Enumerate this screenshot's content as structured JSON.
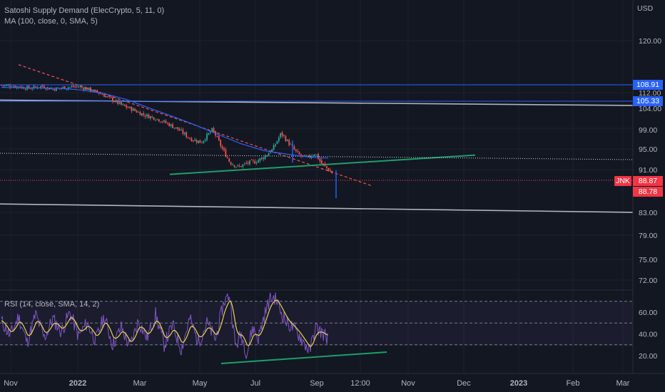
{
  "indicator_label": "Satoshi Supply Demand (ElecCrypto, 5, 11, 0)",
  "ma_label": "MA (100, close, 0, SMA, 5)",
  "rsi_label": "RSI (14, close, SMA, 14, 2)",
  "currency": "USD",
  "symbol": "JNK",
  "colors": {
    "background": "#131722",
    "up": "#26a69a",
    "down": "#ef5350",
    "ma": "#2962ff",
    "rsi": "#7e57c2",
    "rsi_signal": "#e8d44d",
    "trendline_green": "#1e9e6a",
    "horizontal_blue": "#2962ff",
    "horizontal_gray": "#b2b5be",
    "tag_red": "#f23645",
    "tag_blue": "#2962ff"
  },
  "chart_data": [
    {
      "type": "candlestick",
      "ylim": [
        69.5,
        125
      ],
      "y_ticks": [
        "120.00",
        "112.00",
        "104.00",
        "99.00",
        "95.00",
        "91.00",
        "83.00",
        "79.00",
        "75.00",
        "72.00"
      ],
      "x_ticks": [
        "Nov",
        "2022",
        "Mar",
        "May",
        "Jul",
        "Sep",
        "12:00",
        "Nov",
        "Dec",
        "2023",
        "Feb",
        "Mar"
      ],
      "price_tags": [
        {
          "value": "108.91",
          "color": "#2962ff"
        },
        {
          "value": "105.33",
          "color": "#2962ff"
        },
        {
          "value": "88.87",
          "color": "#f23645"
        },
        {
          "value": "88.78",
          "color": "#f23645"
        }
      ],
      "price_path": [
        [
          0,
          109.1
        ],
        [
          0.06,
          108.8
        ],
        [
          0.1,
          108.4
        ],
        [
          0.14,
          108.9
        ],
        [
          0.18,
          108.2
        ],
        [
          0.22,
          108.6
        ],
        [
          0.27,
          108.8
        ],
        [
          0.3,
          108.3
        ],
        [
          0.34,
          107.4
        ],
        [
          0.38,
          106.1
        ],
        [
          0.42,
          104.6
        ],
        [
          0.46,
          103.6
        ],
        [
          0.5,
          102.4
        ],
        [
          0.54,
          101.7
        ],
        [
          0.58,
          100.6
        ],
        [
          0.62,
          99.3
        ],
        [
          0.66,
          97.4
        ],
        [
          0.7,
          96.6
        ],
        [
          0.74,
          99.3
        ],
        [
          0.77,
          95.7
        ],
        [
          0.8,
          92.6
        ],
        [
          0.83,
          91.6
        ],
        [
          0.86,
          92.4
        ],
        [
          0.89,
          92.7
        ],
        [
          0.92,
          93.6
        ],
        [
          0.95,
          95.1
        ],
        [
          0.98,
          98.5
        ],
        [
          1.01,
          96.2
        ],
        [
          1.04,
          94.1
        ],
        [
          1.07,
          93.4
        ],
        [
          1.1,
          94.4
        ],
        [
          1.12,
          92.4
        ],
        [
          1.145,
          91.2
        ],
        [
          1.16,
          90.4
        ]
      ],
      "ma_path": [
        [
          0,
          108.6
        ],
        [
          0.1,
          108.5
        ],
        [
          0.2,
          108.4
        ],
        [
          0.28,
          108.0
        ],
        [
          0.36,
          107.2
        ],
        [
          0.44,
          105.8
        ],
        [
          0.52,
          103.9
        ],
        [
          0.6,
          102.1
        ],
        [
          0.68,
          100.2
        ],
        [
          0.76,
          98.2
        ],
        [
          0.84,
          96.3
        ],
        [
          0.92,
          94.9
        ],
        [
          1.0,
          94.2
        ],
        [
          1.08,
          93.6
        ],
        [
          1.145,
          93.4
        ]
      ],
      "lines": [
        {
          "kind": "dashed-red-trendline",
          "from": [
            0.06,
            114.0
          ],
          "to": [
            1.3,
            88.0
          ]
        },
        {
          "kind": "green-neckline",
          "from": [
            0.64,
            90.5
          ],
          "to": [
            1.66,
            94.0
          ]
        },
        {
          "kind": "gray-horizontal",
          "from": [
            0,
            105.7
          ],
          "to": [
            2.2,
            104.5
          ]
        },
        {
          "kind": "gray-horizontal",
          "from": [
            0,
            84.7
          ],
          "to": [
            2.2,
            83.2
          ]
        },
        {
          "kind": "blue-horizontal",
          "value": 108.91
        },
        {
          "kind": "blue-horizontal",
          "value": 105.33
        },
        {
          "kind": "white-dotted",
          "value": 93.4
        },
        {
          "kind": "red-dotted",
          "value": 88.8
        }
      ]
    },
    {
      "type": "line",
      "name": "RSI",
      "ylim": [
        12,
        75
      ],
      "y_ticks": [
        "60.00",
        "40.00",
        "20.00"
      ],
      "bands": [
        70,
        50,
        30
      ],
      "green_line": {
        "from": [
          0.77,
          13.5
        ],
        "to": [
          1.35,
          22.5
        ]
      },
      "rsi_keypoints": [
        [
          0,
          52
        ],
        [
          0.03,
          38
        ],
        [
          0.06,
          56
        ],
        [
          0.09,
          32
        ],
        [
          0.12,
          58
        ],
        [
          0.15,
          36
        ],
        [
          0.18,
          54
        ],
        [
          0.21,
          42
        ],
        [
          0.24,
          60
        ],
        [
          0.27,
          38
        ],
        [
          0.3,
          50
        ],
        [
          0.33,
          34
        ],
        [
          0.36,
          56
        ],
        [
          0.39,
          30
        ],
        [
          0.42,
          46
        ],
        [
          0.45,
          28
        ],
        [
          0.48,
          52
        ],
        [
          0.51,
          36
        ],
        [
          0.54,
          58
        ],
        [
          0.57,
          30
        ],
        [
          0.6,
          48
        ],
        [
          0.63,
          26
        ],
        [
          0.66,
          54
        ],
        [
          0.69,
          32
        ],
        [
          0.72,
          50
        ],
        [
          0.75,
          35
        ],
        [
          0.78,
          70
        ],
        [
          0.8,
          76
        ],
        [
          0.82,
          28
        ],
        [
          0.84,
          40
        ],
        [
          0.86,
          22
        ],
        [
          0.88,
          46
        ],
        [
          0.9,
          36
        ],
        [
          0.92,
          56
        ],
        [
          0.94,
          72
        ],
        [
          0.96,
          74
        ],
        [
          0.98,
          60
        ],
        [
          1.0,
          50
        ],
        [
          1.02,
          46
        ],
        [
          1.04,
          40
        ],
        [
          1.06,
          32
        ],
        [
          1.08,
          24
        ],
        [
          1.1,
          46
        ],
        [
          1.12,
          42
        ],
        [
          1.145,
          36
        ]
      ]
    }
  ]
}
